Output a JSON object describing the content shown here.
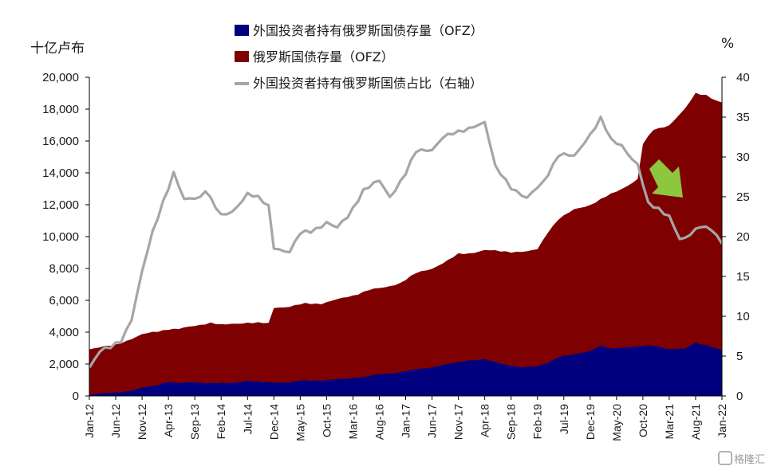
{
  "chart_data": {
    "type": "area",
    "left_axis_label": "十亿卢布",
    "right_axis_label": "%",
    "ylim_left": [
      0,
      20000
    ],
    "yticks_left": [
      "0",
      "2,000",
      "4,000",
      "6,000",
      "8,000",
      "10,000",
      "12,000",
      "14,000",
      "16,000",
      "18,000",
      "20,000"
    ],
    "ylim_right": [
      0,
      40
    ],
    "yticks_right": [
      "0",
      "5",
      "10",
      "15",
      "20",
      "25",
      "30",
      "35",
      "40"
    ],
    "x_tick_labels": [
      "Jan-12",
      "Jun-12",
      "Nov-12",
      "Apr-13",
      "Sep-13",
      "Feb-14",
      "Jul-14",
      "Dec-14",
      "May-15",
      "Oct-15",
      "Mar-16",
      "Aug-16",
      "Jan-17",
      "Jun-17",
      "Nov-17",
      "Apr-18",
      "Sep-18",
      "Feb-19",
      "Jul-19",
      "Dec-19",
      "May-20",
      "Oct-20",
      "Mar-21",
      "Aug-21",
      "Jan-22"
    ],
    "x_start": "2012-01",
    "x_end": "2022-01",
    "series": [
      {
        "name": "外国投资者持有俄罗斯国债存量（OFZ）",
        "kind": "area",
        "axis": "left",
        "color": "#00007f",
        "points": [
          [
            "2012-01",
            100
          ],
          [
            "2012-06",
            200
          ],
          [
            "2012-09",
            350
          ],
          [
            "2012-11",
            500
          ],
          [
            "2013-01",
            600
          ],
          [
            "2013-04",
            900
          ],
          [
            "2013-06",
            800
          ],
          [
            "2013-09",
            850
          ],
          [
            "2014-01",
            800
          ],
          [
            "2014-04",
            800
          ],
          [
            "2014-07",
            950
          ],
          [
            "2014-10",
            850
          ],
          [
            "2014-12",
            850
          ],
          [
            "2015-03",
            850
          ],
          [
            "2015-05",
            950
          ],
          [
            "2015-10",
            1000
          ],
          [
            "2016-01",
            1050
          ],
          [
            "2016-05",
            1200
          ],
          [
            "2016-08",
            1350
          ],
          [
            "2016-11",
            1450
          ],
          [
            "2017-01",
            1550
          ],
          [
            "2017-03",
            1650
          ],
          [
            "2017-06",
            1800
          ],
          [
            "2017-08",
            1950
          ],
          [
            "2017-11",
            2100
          ],
          [
            "2018-01",
            2250
          ],
          [
            "2018-04",
            2300
          ],
          [
            "2018-06",
            2100
          ],
          [
            "2018-09",
            1900
          ],
          [
            "2018-11",
            1800
          ],
          [
            "2019-02",
            1850
          ],
          [
            "2019-04",
            2100
          ],
          [
            "2019-06",
            2450
          ],
          [
            "2019-09",
            2600
          ],
          [
            "2019-12",
            2850
          ],
          [
            "2020-02",
            3150
          ],
          [
            "2020-04",
            2950
          ],
          [
            "2020-06",
            3050
          ],
          [
            "2020-09",
            3100
          ],
          [
            "2020-12",
            3150
          ],
          [
            "2021-03",
            2950
          ],
          [
            "2021-06",
            2950
          ],
          [
            "2021-08",
            3350
          ],
          [
            "2021-10",
            3200
          ],
          [
            "2022-01",
            2850
          ]
        ]
      },
      {
        "name": "俄罗斯国债存量（OFZ）",
        "kind": "area",
        "axis": "left",
        "color": "#7f0000",
        "points": [
          [
            "2012-01",
            2950
          ],
          [
            "2012-06",
            3200
          ],
          [
            "2012-11",
            3850
          ],
          [
            "2013-04",
            4200
          ],
          [
            "2013-06",
            4200
          ],
          [
            "2013-09",
            4400
          ],
          [
            "2013-12",
            4600
          ],
          [
            "2014-02",
            4450
          ],
          [
            "2014-05",
            4550
          ],
          [
            "2014-07",
            4600
          ],
          [
            "2014-11",
            4550
          ],
          [
            "2014-12",
            5550
          ],
          [
            "2015-03",
            5600
          ],
          [
            "2015-06",
            5800
          ],
          [
            "2015-09",
            5800
          ],
          [
            "2015-12",
            6050
          ],
          [
            "2016-03",
            6300
          ],
          [
            "2016-06",
            6650
          ],
          [
            "2016-09",
            6800
          ],
          [
            "2016-12",
            7100
          ],
          [
            "2017-03",
            7700
          ],
          [
            "2017-06",
            8000
          ],
          [
            "2017-09",
            8500
          ],
          [
            "2017-11",
            8900
          ],
          [
            "2018-01",
            8950
          ],
          [
            "2018-04",
            9150
          ],
          [
            "2018-06",
            9100
          ],
          [
            "2018-09",
            9050
          ],
          [
            "2018-12",
            9050
          ],
          [
            "2019-02",
            9200
          ],
          [
            "2019-04",
            10300
          ],
          [
            "2019-06",
            11100
          ],
          [
            "2019-09",
            11700
          ],
          [
            "2019-12",
            12000
          ],
          [
            "2020-03",
            12500
          ],
          [
            "2020-06",
            13000
          ],
          [
            "2020-09",
            13600
          ],
          [
            "2020-10",
            15800
          ],
          [
            "2020-12",
            16700
          ],
          [
            "2021-03",
            17000
          ],
          [
            "2021-06",
            18000
          ],
          [
            "2021-08",
            19000
          ],
          [
            "2021-10",
            18900
          ],
          [
            "2021-12",
            18500
          ],
          [
            "2022-01",
            18400
          ]
        ]
      },
      {
        "name": "外国投资者持有俄罗斯国债占比（右轴）",
        "kind": "line",
        "axis": "right",
        "color": "#a6a6a6",
        "points": [
          [
            "2012-01",
            3.7
          ],
          [
            "2012-03",
            5.6
          ],
          [
            "2012-05",
            6.0
          ],
          [
            "2012-07",
            7.0
          ],
          [
            "2012-09",
            9.7
          ],
          [
            "2012-11",
            15.5
          ],
          [
            "2013-01",
            20.5
          ],
          [
            "2013-03",
            24.5
          ],
          [
            "2013-05",
            28.0
          ],
          [
            "2013-07",
            24.5
          ],
          [
            "2013-10",
            25.0
          ],
          [
            "2013-11",
            26.0
          ],
          [
            "2014-02",
            22.5
          ],
          [
            "2014-04",
            23.0
          ],
          [
            "2014-07",
            25.5
          ],
          [
            "2014-09",
            24.8
          ],
          [
            "2014-11",
            23.7
          ],
          [
            "2014-12",
            18.7
          ],
          [
            "2015-03",
            18.1
          ],
          [
            "2015-05",
            20.3
          ],
          [
            "2015-07",
            20.7
          ],
          [
            "2015-10",
            21.8
          ],
          [
            "2015-12",
            21.0
          ],
          [
            "2016-02",
            22.5
          ],
          [
            "2016-05",
            25.9
          ],
          [
            "2016-08",
            26.9
          ],
          [
            "2016-10",
            25.0
          ],
          [
            "2017-01",
            28.0
          ],
          [
            "2017-03",
            30.6
          ],
          [
            "2017-06",
            31.0
          ],
          [
            "2017-08",
            32.5
          ],
          [
            "2017-11",
            33.0
          ],
          [
            "2018-02",
            34.0
          ],
          [
            "2018-04",
            34.3
          ],
          [
            "2018-06",
            28.7
          ],
          [
            "2018-09",
            26.3
          ],
          [
            "2018-12",
            24.7
          ],
          [
            "2019-03",
            26.8
          ],
          [
            "2019-06",
            30.3
          ],
          [
            "2019-09",
            30.0
          ],
          [
            "2019-11",
            32.0
          ],
          [
            "2020-02",
            34.8
          ],
          [
            "2020-04",
            32.0
          ],
          [
            "2020-06",
            31.5
          ],
          [
            "2020-09",
            29.0
          ],
          [
            "2020-11",
            24.0
          ],
          [
            "2021-01",
            23.5
          ],
          [
            "2021-03",
            22.7
          ],
          [
            "2021-05",
            19.6
          ],
          [
            "2021-06",
            19.6
          ],
          [
            "2021-09",
            21.5
          ],
          [
            "2021-11",
            21.0
          ],
          [
            "2022-01",
            19.0
          ]
        ]
      }
    ],
    "annotation": {
      "kind": "arrow",
      "color": "#8dc63f",
      "direction": "down-right"
    },
    "legend_position": "top-center",
    "grid": false
  },
  "watermark": {
    "text": "格隆汇"
  }
}
